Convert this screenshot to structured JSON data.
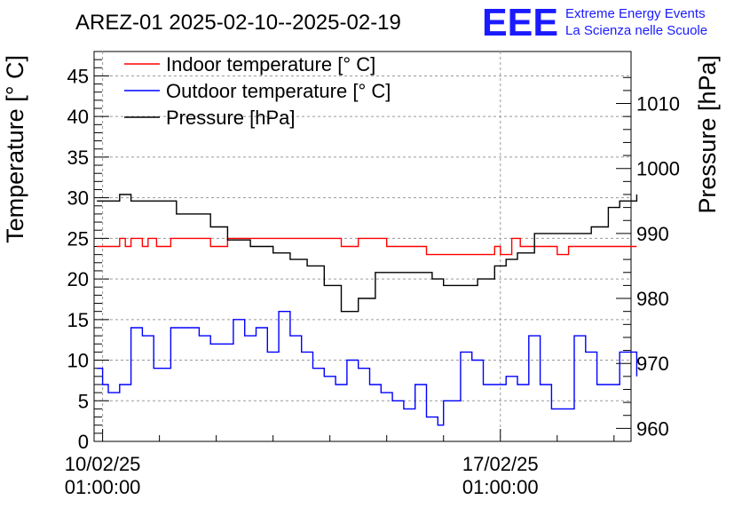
{
  "header": {
    "title": "AREZ-01 2025-02-10--2025-02-19",
    "logo": "EEE",
    "logo_line1": "Extreme Energy Events",
    "logo_line2": "La Scienza nelle Scuole"
  },
  "chart_data": {
    "type": "line",
    "title": "AREZ-01 2025-02-10--2025-02-19",
    "ylabel": "Temperature [° C]",
    "y2label": "Pressure [hPa]",
    "ylim": [
      0,
      48
    ],
    "y2lim": [
      958,
      1018
    ],
    "xlim": [
      -0.15,
      9.3
    ],
    "xticks": [
      {
        "x": 0,
        "line1": "10/02/25",
        "line2": "01:00:00"
      },
      {
        "x": 7,
        "line1": "17/02/25",
        "line2": "01:00:00"
      }
    ],
    "yticks": [
      0,
      5,
      10,
      15,
      20,
      25,
      30,
      35,
      40,
      45
    ],
    "y2ticks": [
      960,
      970,
      980,
      990,
      1000,
      1010
    ],
    "grid": true,
    "legend_position": "top-left",
    "series": [
      {
        "name": "Indoor temperature [° C]",
        "color": "#ff0000",
        "axis": "left",
        "x": [
          -0.1,
          0.2,
          0.3,
          0.4,
          0.5,
          0.7,
          0.8,
          0.95,
          1.2,
          1.5,
          1.9,
          2.2,
          2.6,
          3.0,
          3.3,
          3.7,
          4.0,
          4.2,
          4.5,
          4.8,
          5.0,
          5.3,
          5.7,
          6.0,
          6.3,
          6.6,
          6.75,
          6.9,
          7.0,
          7.2,
          7.35,
          7.5,
          7.8,
          8.0,
          8.2,
          8.5,
          9.0,
          9.4
        ],
        "values": [
          24,
          24,
          25,
          24,
          25,
          24,
          25,
          24,
          25,
          25,
          24,
          25,
          25,
          25,
          25,
          25,
          25,
          24,
          25,
          25,
          24,
          24,
          23,
          23,
          23,
          23,
          23,
          24,
          23,
          25,
          24,
          24,
          24,
          23,
          24,
          24,
          24,
          24
        ]
      },
      {
        "name": "Outdoor temperature [° C]",
        "color": "#0000ff",
        "axis": "left",
        "x": [
          -0.1,
          0.0,
          0.1,
          0.3,
          0.5,
          0.7,
          0.9,
          1.0,
          1.2,
          1.5,
          1.7,
          1.9,
          2.1,
          2.3,
          2.5,
          2.7,
          2.9,
          3.1,
          3.3,
          3.5,
          3.7,
          3.9,
          4.1,
          4.3,
          4.5,
          4.7,
          4.9,
          5.1,
          5.3,
          5.5,
          5.7,
          5.9,
          6.0,
          6.3,
          6.5,
          6.7,
          6.9,
          7.1,
          7.3,
          7.5,
          7.7,
          7.9,
          8.1,
          8.3,
          8.5,
          8.7,
          8.9,
          9.1,
          9.4
        ],
        "values": [
          9,
          7,
          6,
          7,
          14,
          13,
          9,
          9,
          14,
          14,
          13,
          12,
          12,
          15,
          13,
          14,
          11,
          16,
          13,
          11,
          9,
          8,
          7,
          10,
          9,
          7,
          6,
          5,
          4,
          7,
          3,
          2,
          5,
          11,
          10,
          7,
          7,
          8,
          7,
          13,
          7,
          4,
          4,
          13,
          11,
          7,
          7,
          11,
          8
        ]
      },
      {
        "name": "Pressure [hPa]",
        "color": "#000000",
        "axis": "right",
        "x": [
          -0.1,
          0.1,
          0.3,
          0.5,
          0.8,
          1.0,
          1.3,
          1.6,
          1.9,
          2.2,
          2.6,
          3.0,
          3.3,
          3.6,
          3.9,
          4.2,
          4.5,
          4.8,
          5.0,
          5.3,
          5.6,
          5.8,
          6.0,
          6.3,
          6.6,
          6.9,
          7.1,
          7.3,
          7.5,
          7.6,
          7.9,
          8.1,
          8.3,
          8.6,
          8.9,
          9.1,
          9.4
        ],
        "values": [
          995,
          995,
          996,
          995,
          995,
          995,
          993,
          993,
          991,
          989,
          988,
          987,
          986,
          985,
          982,
          978,
          980,
          984,
          984,
          984,
          984,
          983,
          982,
          982,
          983,
          985,
          986,
          987,
          987,
          990,
          990,
          990,
          990,
          991,
          994,
          995,
          996
        ]
      }
    ]
  }
}
